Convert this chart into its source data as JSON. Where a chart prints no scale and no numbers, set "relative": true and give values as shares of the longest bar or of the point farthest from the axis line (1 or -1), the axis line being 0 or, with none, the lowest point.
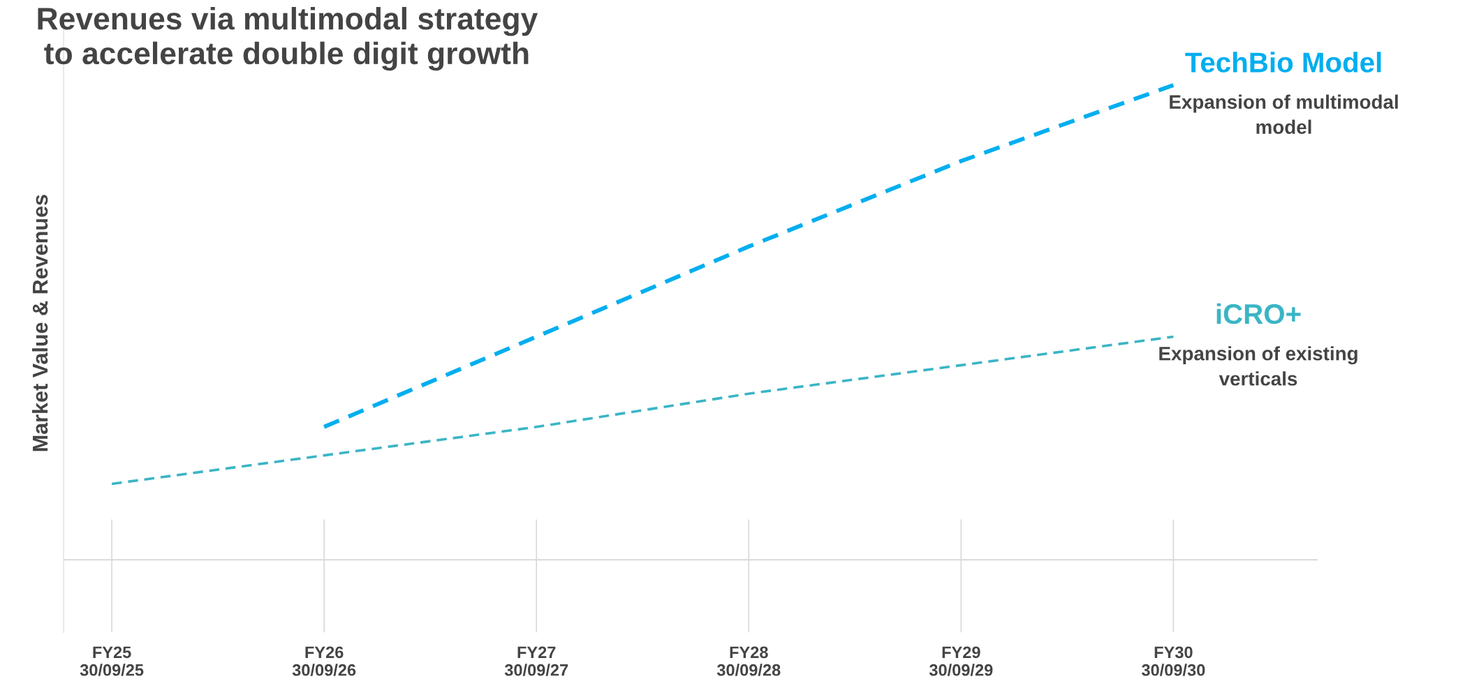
{
  "chart_data": {
    "type": "line",
    "relative": true,
    "title": "Revenues via multimodal strategy\nto accelerate double digit growth",
    "ylabel": "Market Value & Revenues",
    "categories": [
      "FY25\n30/09/25",
      "FY26\n30/09/26",
      "FY27\n30/09/27",
      "FY28\n30/09/28",
      "FY29\n30/09/29",
      "FY30\n30/09/30"
    ],
    "series": [
      {
        "name": "TechBio Model",
        "color": "#00aeef",
        "values": [
          null,
          0.28,
          0.47,
          0.66,
          0.84,
          1.0
        ]
      },
      {
        "name": "iCRO+",
        "color": "#3ab5c5",
        "values": [
          0.16,
          0.22,
          0.28,
          0.35,
          0.41,
          0.47
        ]
      }
    ],
    "annotations": [
      "Expansion of multimodal\nmodel",
      "Expansion of existing\nverticals"
    ],
    "line_style": "dashed",
    "marker": "none",
    "grid": "x",
    "legend": false
  }
}
